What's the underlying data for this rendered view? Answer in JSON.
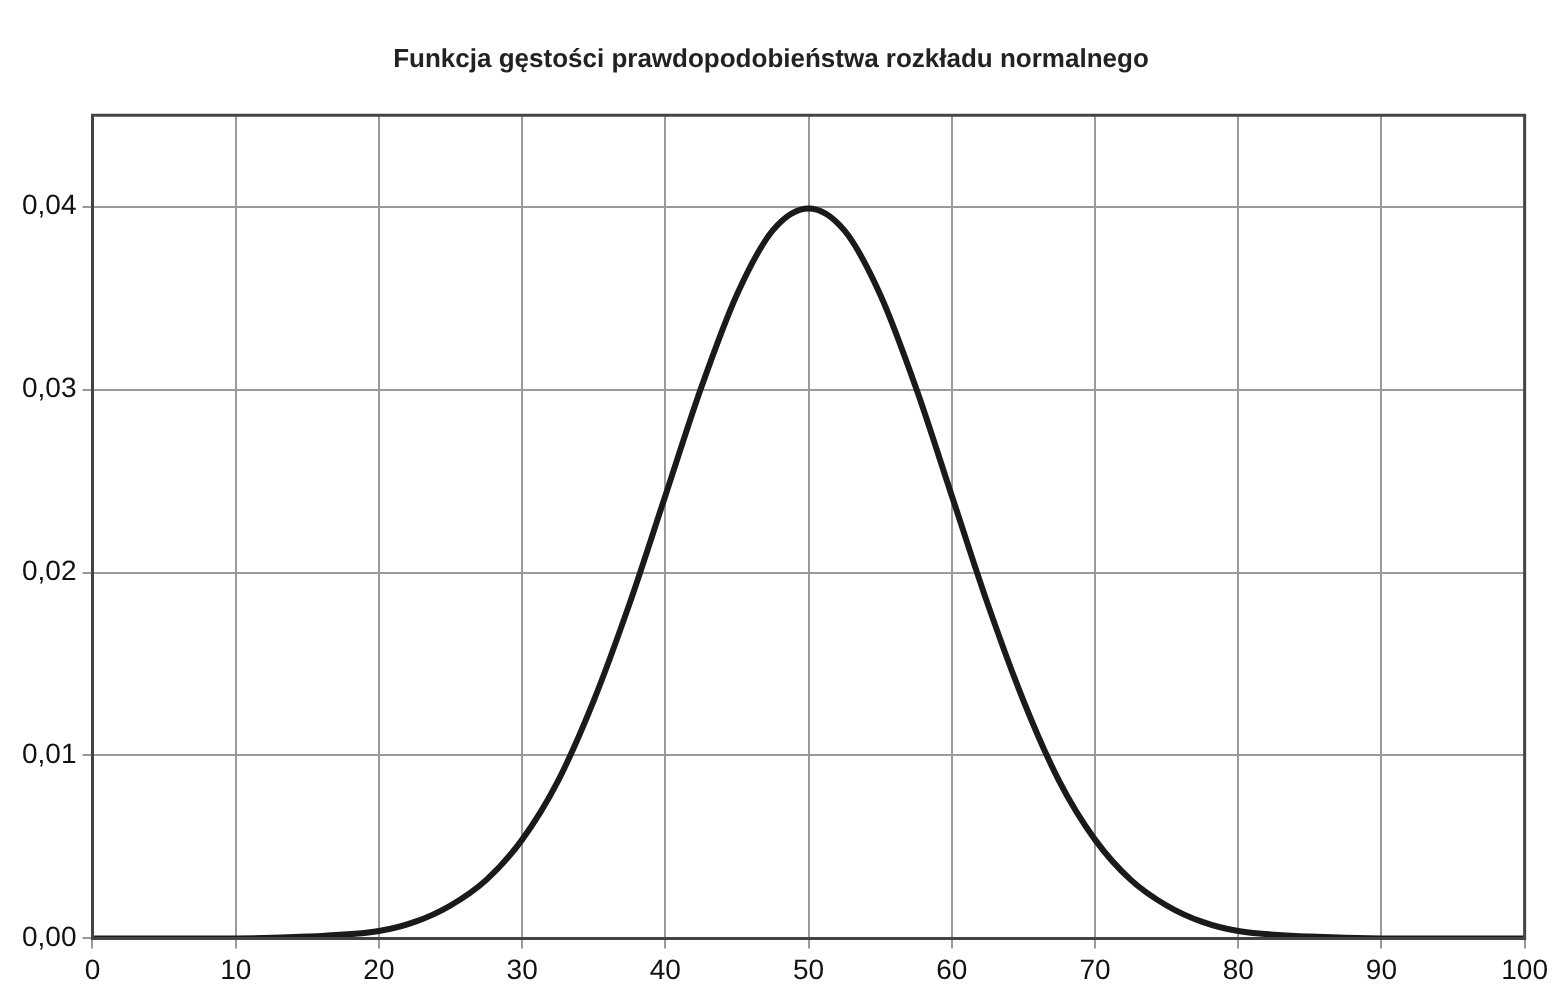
{
  "chart_data": {
    "type": "line",
    "title": "Funkcja gęstości prawdopodobieństwa rozkładu normalnego",
    "series": [
      {
        "color": "#1a1a1a",
        "x": [
          0,
          10,
          15,
          20,
          22.5,
          25,
          27.5,
          30,
          32.5,
          35,
          37.5,
          40,
          42.5,
          45,
          47.5,
          50,
          52.5,
          55,
          57.5,
          60,
          62.5,
          65,
          67.5,
          70,
          72.5,
          75,
          77.5,
          80,
          85,
          90,
          100
        ],
        "values": [
          0,
          0,
          0.0001,
          0.0004,
          0.0009,
          0.0018,
          0.0032,
          0.0054,
          0.0086,
          0.013,
          0.0183,
          0.0242,
          0.0301,
          0.0352,
          0.0387,
          0.0399,
          0.0387,
          0.0352,
          0.0301,
          0.0242,
          0.0183,
          0.013,
          0.0086,
          0.0054,
          0.0032,
          0.0018,
          0.0009,
          0.0004,
          0.0001,
          0,
          0
        ]
      }
    ],
    "xlim": [
      0,
      100
    ],
    "xticks": [
      0,
      10,
      20,
      30,
      40,
      50,
      60,
      70,
      80,
      90,
      100
    ],
    "ylim": [
      0,
      0.045
    ],
    "yticks": [
      {
        "value": 0,
        "label": "0,00"
      },
      {
        "value": 0.01,
        "label": "0,01"
      },
      {
        "value": 0.02,
        "label": "0,02"
      },
      {
        "value": 0.03,
        "label": "0,03"
      },
      {
        "value": 0.04,
        "label": "0,04"
      }
    ],
    "grid": true,
    "legend": false,
    "marker": "none",
    "line_style": "solid"
  }
}
